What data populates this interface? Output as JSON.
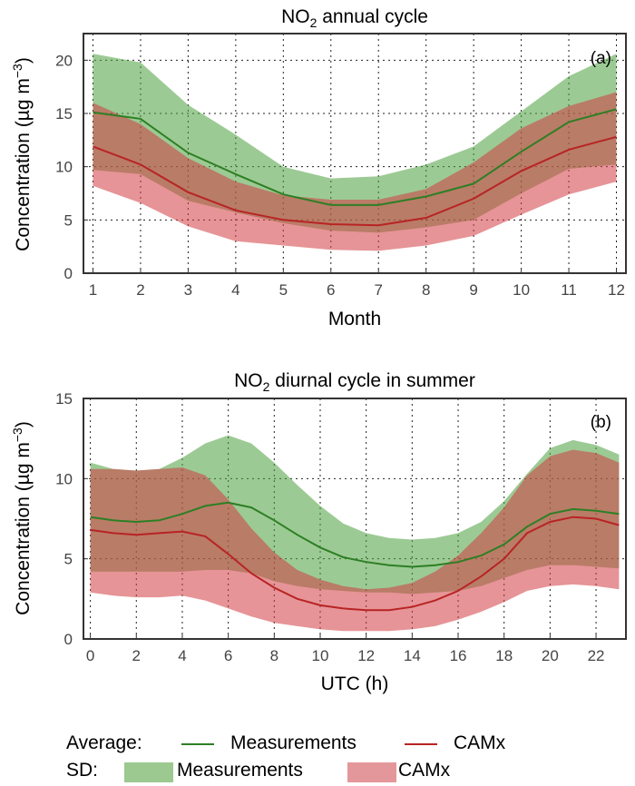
{
  "chart_data": [
    {
      "type": "area",
      "title_main": "NO",
      "title_sub": "2",
      "title_rest": " annual cycle",
      "panel_tag": "(a)",
      "xlabel": "Month",
      "ylabel": "Concentration (µg m",
      "ylabel_sup": "−3",
      "ylabel_close": ")",
      "xlim": [
        0.8,
        12.2
      ],
      "ylim": [
        0,
        22.5
      ],
      "xticks": [
        1,
        2,
        3,
        4,
        5,
        6,
        7,
        8,
        9,
        10,
        11,
        12
      ],
      "yticks": [
        0,
        5,
        10,
        15,
        20
      ],
      "x": [
        1,
        2,
        3,
        4,
        5,
        6,
        7,
        8,
        9,
        10,
        11,
        12
      ],
      "series": [
        {
          "name": "Measurements",
          "mean": [
            15.1,
            14.5,
            11.3,
            9.3,
            7.4,
            6.4,
            6.4,
            7.2,
            8.4,
            11.4,
            14.2,
            15.4
          ],
          "lower": [
            9.7,
            9.3,
            6.8,
            5.7,
            4.7,
            4.0,
            3.8,
            4.3,
            5.0,
            7.5,
            9.8,
            10.2
          ],
          "upper": [
            20.6,
            19.8,
            15.8,
            13.0,
            10.0,
            8.9,
            9.1,
            10.2,
            11.9,
            15.2,
            18.5,
            20.6
          ]
        },
        {
          "name": "CAMx",
          "mean": [
            11.9,
            10.2,
            7.6,
            5.9,
            5.0,
            4.6,
            4.5,
            5.2,
            7.0,
            9.6,
            11.6,
            12.8
          ],
          "lower": [
            8.2,
            6.6,
            4.4,
            3.0,
            2.6,
            2.2,
            2.1,
            2.6,
            3.5,
            5.5,
            7.4,
            8.6
          ],
          "upper": [
            16.0,
            14.0,
            10.8,
            8.6,
            7.3,
            6.9,
            6.9,
            7.9,
            10.4,
            13.6,
            15.7,
            17.0
          ]
        }
      ],
      "grid": "dotted"
    },
    {
      "type": "area",
      "title_main": "NO",
      "title_sub": "2",
      "title_rest": " diurnal cycle in summer",
      "panel_tag": "(b)",
      "xlabel": "UTC (h)",
      "ylabel": "Concentration (µg m",
      "ylabel_sup": "−3",
      "ylabel_close": ")",
      "xlim": [
        -0.3,
        23.3
      ],
      "ylim": [
        0,
        15
      ],
      "xticks": [
        0,
        2,
        4,
        6,
        8,
        10,
        12,
        14,
        16,
        18,
        20,
        22
      ],
      "yticks": [
        0,
        5,
        10,
        15
      ],
      "x": [
        0,
        1,
        2,
        3,
        4,
        5,
        6,
        7,
        8,
        9,
        10,
        11,
        12,
        13,
        14,
        15,
        16,
        17,
        18,
        19,
        20,
        21,
        22,
        23
      ],
      "series": [
        {
          "name": "Measurements",
          "mean": [
            7.6,
            7.4,
            7.3,
            7.4,
            7.8,
            8.3,
            8.5,
            8.2,
            7.4,
            6.5,
            5.7,
            5.1,
            4.8,
            4.6,
            4.5,
            4.6,
            4.8,
            5.2,
            5.9,
            7.0,
            7.8,
            8.1,
            8.0,
            7.8
          ],
          "lower": [
            4.2,
            4.2,
            4.2,
            4.2,
            4.2,
            4.3,
            4.3,
            4.1,
            3.6,
            3.3,
            3.1,
            3.0,
            2.9,
            2.9,
            2.8,
            2.9,
            3.0,
            3.3,
            3.8,
            4.3,
            4.6,
            4.6,
            4.5,
            4.4
          ],
          "upper": [
            11.0,
            10.6,
            10.5,
            10.6,
            11.3,
            12.2,
            12.7,
            12.2,
            11.0,
            9.6,
            8.3,
            7.2,
            6.6,
            6.3,
            6.2,
            6.3,
            6.6,
            7.3,
            8.6,
            10.3,
            11.9,
            12.4,
            12.1,
            11.5
          ]
        },
        {
          "name": "CAMx",
          "mean": [
            6.8,
            6.6,
            6.5,
            6.6,
            6.7,
            6.4,
            5.3,
            4.1,
            3.2,
            2.5,
            2.1,
            1.9,
            1.8,
            1.8,
            2.0,
            2.4,
            3.0,
            3.9,
            5.0,
            6.6,
            7.3,
            7.6,
            7.5,
            7.1
          ],
          "lower": [
            2.9,
            2.7,
            2.6,
            2.6,
            2.7,
            2.4,
            1.9,
            1.4,
            1.0,
            0.8,
            0.6,
            0.5,
            0.5,
            0.5,
            0.6,
            0.8,
            1.2,
            1.7,
            2.3,
            3.0,
            3.3,
            3.4,
            3.3,
            3.1
          ],
          "upper": [
            10.6,
            10.6,
            10.5,
            10.6,
            10.7,
            10.2,
            8.7,
            6.9,
            5.4,
            4.3,
            3.7,
            3.3,
            3.1,
            3.2,
            3.5,
            4.2,
            5.2,
            6.6,
            8.2,
            10.2,
            11.4,
            11.8,
            11.6,
            11.0
          ]
        }
      ],
      "grid": "dotted"
    }
  ],
  "legend": {
    "average_label": "Average:",
    "sd_label": "SD:",
    "meas_line_label": "Measurements",
    "camx_line_label": "CAMx",
    "meas_patch_label": "Measurements",
    "camx_patch_label": "CAMx",
    "placement": "bottom"
  },
  "colors": {
    "meas_fill": "#4a9e3c",
    "camx_fill": "#d13c41",
    "meas_line": "#2d7f24",
    "camx_line": "#b82424",
    "meas_patch": "#9bc990",
    "camx_patch": "#e4979a"
  }
}
